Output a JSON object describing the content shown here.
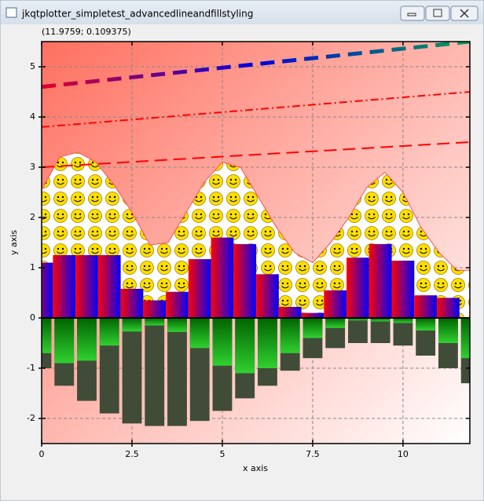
{
  "window": {
    "title": "jkqtplotter_simpletest_advancedlineandfillstyling"
  },
  "readout": "(11.9759; 0.109375)",
  "chart_data": {
    "type": "combo",
    "xlabel": "x axis",
    "ylabel": "y axis",
    "xlim": [
      0,
      11.85
    ],
    "ylim": [
      -2.5,
      5.5
    ],
    "xticks": [
      0,
      2.5,
      5,
      7.5,
      10
    ],
    "yticks": [
      -2,
      -1,
      0,
      1,
      2,
      3,
      4,
      5
    ],
    "grid": true,
    "series": [
      {
        "type": "area",
        "color": "#ff5050",
        "x": [
          0,
          0.5,
          1,
          1.5,
          2,
          2.5,
          3,
          3.5,
          4,
          4.5,
          5,
          5.5,
          6,
          6.5,
          7,
          7.5,
          8,
          8.5,
          9,
          9.5,
          10,
          10.5,
          11,
          11.5,
          12
        ],
        "values": [
          2.55,
          3.2,
          3.3,
          3.1,
          2.65,
          2.1,
          1.45,
          1.5,
          2.1,
          2.7,
          3.1,
          3.0,
          2.4,
          1.8,
          1.3,
          1.1,
          1.5,
          2.0,
          2.6,
          2.9,
          2.5,
          1.8,
          1.3,
          0.95,
          0.95
        ]
      },
      {
        "type": "step",
        "colors": [
          "#ff0000",
          "#0000ff"
        ],
        "x": [
          0,
          0.625,
          1.25,
          1.875,
          2.5,
          3.125,
          3.75,
          4.375,
          5,
          5.625,
          6.25,
          6.875,
          7.5,
          8.125,
          8.75,
          9.375,
          10,
          10.625,
          11.25
        ],
        "values": [
          1.1,
          1.25,
          1.25,
          1.25,
          0.58,
          0.35,
          0.52,
          1.17,
          1.6,
          1.47,
          0.87,
          0.22,
          0.1,
          0.55,
          1.2,
          1.47,
          1.14,
          0.45,
          0.4
        ]
      },
      {
        "type": "bar",
        "color": "#404c38",
        "x": [
          0,
          0.625,
          1.25,
          1.875,
          2.5,
          3.125,
          3.75,
          4.375,
          5,
          5.625,
          6.25,
          6.875,
          7.5,
          8.125,
          8.75,
          9.375,
          10,
          10.625,
          11.25,
          11.875
        ],
        "values": [
          -1.0,
          -1.35,
          -1.65,
          -1.9,
          -2.1,
          -2.15,
          -2.15,
          -2.05,
          -1.85,
          -1.6,
          -1.35,
          -1.05,
          -0.8,
          -0.6,
          -0.5,
          -0.5,
          -0.55,
          -0.75,
          -1.0,
          -1.3
        ]
      },
      {
        "type": "bar",
        "color": "#10b010",
        "x": [
          0,
          0.625,
          1.25,
          1.875,
          2.5,
          3.125,
          3.75,
          4.375,
          5,
          5.625,
          6.25,
          6.875,
          7.5,
          8.125,
          8.75,
          9.375,
          10,
          10.625,
          11.25,
          11.875
        ],
        "values": [
          -0.7,
          -0.9,
          -0.85,
          -0.55,
          -0.27,
          -0.15,
          -0.28,
          -0.6,
          -0.95,
          -1.1,
          -1.0,
          -0.7,
          -0.4,
          -0.2,
          -0.05,
          -0.07,
          -0.1,
          -0.25,
          -0.5,
          -0.8
        ]
      },
      {
        "type": "line",
        "colors": [
          "#e0002a",
          "#0000e0",
          "#00a050"
        ],
        "dash": "18,10",
        "width": 5,
        "x": [
          0,
          11.85
        ],
        "values": [
          4.6,
          5.5
        ]
      },
      {
        "type": "line",
        "color": "#ff0000",
        "dash": "10,4,2,4",
        "width": 2,
        "x": [
          0,
          11.85
        ],
        "values": [
          3.8,
          4.5
        ]
      },
      {
        "type": "line",
        "color": "#ff0000",
        "dash": "16,8",
        "width": 2,
        "x": [
          0,
          11.85
        ],
        "values": [
          3.0,
          3.5
        ]
      }
    ]
  }
}
